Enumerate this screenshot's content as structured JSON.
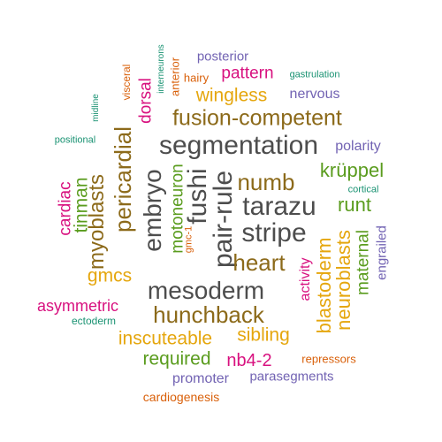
{
  "colors": {
    "gray": "#4d4d4d",
    "brown": "#8c6a1a",
    "orange": "#d9600a",
    "magenta": "#d8117f",
    "green": "#5a9c1e",
    "teal": "#199272",
    "purple": "#7263b3",
    "gold": "#e5a60d"
  },
  "words": [
    {
      "text": "segmentation",
      "color": "gray"
    },
    {
      "text": "fushi",
      "color": "gray"
    },
    {
      "text": "pair-rule",
      "color": "gray"
    },
    {
      "text": "tarazu",
      "color": "gray"
    },
    {
      "text": "stripe",
      "color": "gray"
    },
    {
      "text": "embryo",
      "color": "gray"
    },
    {
      "text": "mesoderm",
      "color": "gray"
    },
    {
      "text": "fusion-competent",
      "color": "brown"
    },
    {
      "text": "numb",
      "color": "brown"
    },
    {
      "text": "heart",
      "color": "brown"
    },
    {
      "text": "hunchback",
      "color": "brown"
    },
    {
      "text": "pericardial",
      "color": "brown"
    },
    {
      "text": "myoblasts",
      "color": "brown"
    },
    {
      "text": "wingless",
      "color": "gold"
    },
    {
      "text": "inscuteable",
      "color": "gold"
    },
    {
      "text": "sibling",
      "color": "gold"
    },
    {
      "text": "gmcs",
      "color": "gold"
    },
    {
      "text": "blastoderm",
      "color": "gold"
    },
    {
      "text": "neuroblasts",
      "color": "gold"
    },
    {
      "text": "krüppel",
      "color": "green"
    },
    {
      "text": "runt",
      "color": "green"
    },
    {
      "text": "tinman",
      "color": "green"
    },
    {
      "text": "motoneuron",
      "color": "green"
    },
    {
      "text": "required",
      "color": "green"
    },
    {
      "text": "maternal",
      "color": "green"
    },
    {
      "text": "cardiac",
      "color": "magenta"
    },
    {
      "text": "dorsal",
      "color": "magenta"
    },
    {
      "text": "pattern",
      "color": "magenta"
    },
    {
      "text": "activity",
      "color": "magenta"
    },
    {
      "text": "nb4-2",
      "color": "magenta"
    },
    {
      "text": "asymmetric",
      "color": "magenta"
    },
    {
      "text": "posterior",
      "color": "purple"
    },
    {
      "text": "nervous",
      "color": "purple"
    },
    {
      "text": "polarity",
      "color": "purple"
    },
    {
      "text": "engrailed",
      "color": "purple"
    },
    {
      "text": "promoter",
      "color": "purple"
    },
    {
      "text": "parasegments",
      "color": "purple"
    },
    {
      "text": "visceral",
      "color": "orange"
    },
    {
      "text": "hairy",
      "color": "orange"
    },
    {
      "text": "anterior",
      "color": "orange"
    },
    {
      "text": "gmc-1",
      "color": "orange"
    },
    {
      "text": "repressors",
      "color": "orange"
    },
    {
      "text": "cardiogenesis",
      "color": "orange"
    },
    {
      "text": "gastrulation",
      "color": "teal"
    },
    {
      "text": "interneurons",
      "color": "teal"
    },
    {
      "text": "midline",
      "color": "teal"
    },
    {
      "text": "positional",
      "color": "teal"
    },
    {
      "text": "cortical",
      "color": "teal"
    },
    {
      "text": "ectoderm",
      "color": "teal"
    }
  ]
}
